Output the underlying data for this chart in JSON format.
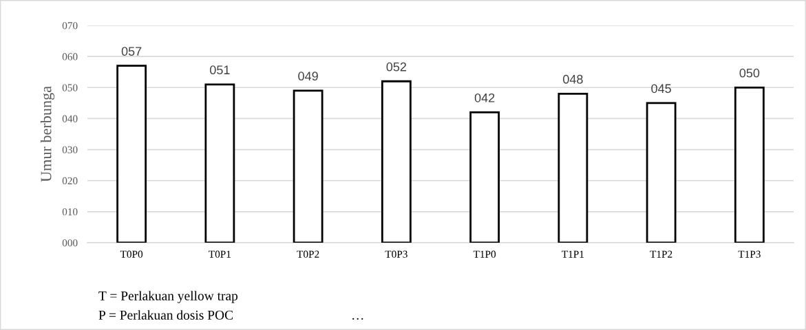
{
  "chart_data": {
    "type": "bar",
    "ylabel": "Umur berbunga",
    "categories": [
      "T0P0",
      "T0P1",
      "T0P2",
      "T0P3",
      "T1P0",
      "T1P1",
      "T1P2",
      "T1P3"
    ],
    "values": [
      57,
      51,
      49,
      52,
      42,
      48,
      45,
      50
    ],
    "value_labels": [
      "057",
      "051",
      "049",
      "052",
      "042",
      "048",
      "045",
      "050"
    ],
    "color": "#ffffff",
    "ylim": [
      0,
      70
    ],
    "yticks": [
      {
        "value": 0,
        "label": "000"
      },
      {
        "value": 10,
        "label": "010"
      },
      {
        "value": 20,
        "label": "020"
      },
      {
        "value": 30,
        "label": "030"
      },
      {
        "value": 40,
        "label": "040"
      },
      {
        "value": 50,
        "label": "050"
      },
      {
        "value": 60,
        "label": "060"
      },
      {
        "value": 70,
        "label": "070"
      }
    ],
    "grid": "y",
    "legend": false,
    "annotations": [
      "T = Perlakuan yellow trap",
      "P = Perlakuan dosis POC",
      "…"
    ]
  }
}
